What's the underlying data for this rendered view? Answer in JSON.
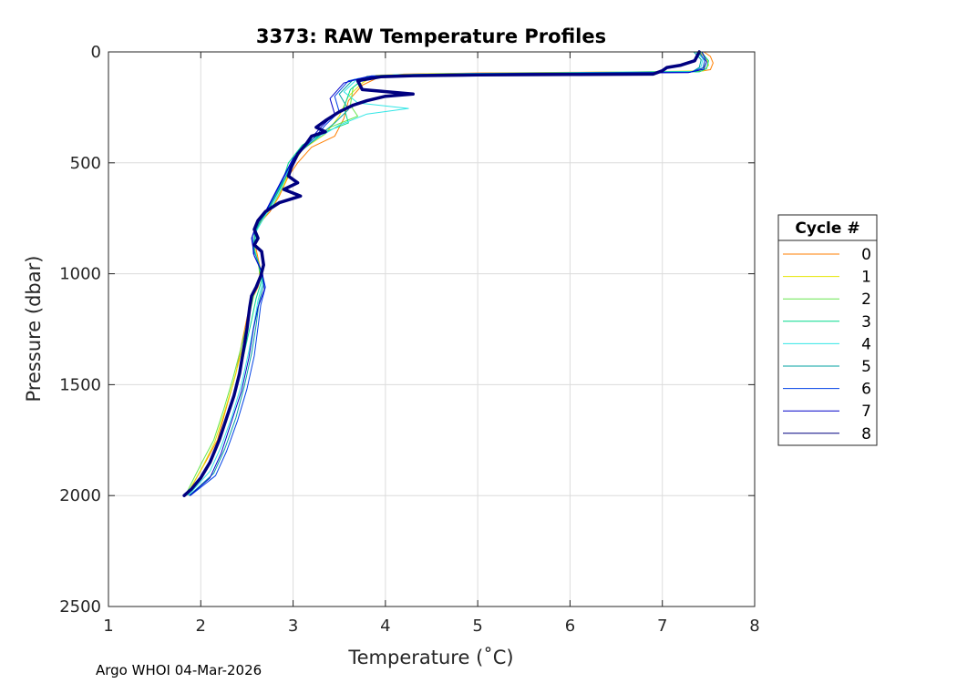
{
  "chart_data": {
    "type": "line",
    "title": "3373: RAW Temperature Profiles",
    "xlabel": "Temperature (˚C)",
    "ylabel": "Pressure (dbar)",
    "xlim": [
      1,
      8
    ],
    "ylim": [
      0,
      2500
    ],
    "y_reversed": true,
    "x_ticks": [
      1,
      2,
      3,
      4,
      5,
      6,
      7,
      8
    ],
    "y_ticks": [
      0,
      500,
      1000,
      1500,
      2000,
      2500
    ],
    "grid": true,
    "legend": {
      "title": "Cycle #",
      "placement": "right"
    },
    "footer": "Argo WHOI 04-Mar-2026",
    "series": [
      {
        "name": "0",
        "color": "#ff7f00",
        "points": [
          [
            7.45,
            0
          ],
          [
            7.52,
            20
          ],
          [
            7.55,
            50
          ],
          [
            7.52,
            80
          ],
          [
            7.4,
            88
          ],
          [
            6.0,
            92
          ],
          [
            5.0,
            95
          ],
          [
            4.2,
            100
          ],
          [
            3.95,
            110
          ],
          [
            3.75,
            150
          ],
          [
            3.6,
            220
          ],
          [
            3.55,
            300
          ],
          [
            3.45,
            380
          ],
          [
            3.2,
            430
          ],
          [
            3.05,
            500
          ],
          [
            2.95,
            560
          ],
          [
            2.85,
            650
          ],
          [
            2.75,
            720
          ],
          [
            2.62,
            780
          ],
          [
            2.58,
            850
          ],
          [
            2.62,
            930
          ],
          [
            2.66,
            1000
          ],
          [
            2.62,
            1060
          ],
          [
            2.55,
            1120
          ],
          [
            2.5,
            1200
          ],
          [
            2.45,
            1300
          ],
          [
            2.38,
            1450
          ],
          [
            2.28,
            1600
          ],
          [
            2.18,
            1750
          ],
          [
            2.05,
            1850
          ],
          [
            1.86,
            1990
          ]
        ]
      },
      {
        "name": "1",
        "color": "#e6e600",
        "points": [
          [
            7.4,
            0
          ],
          [
            7.48,
            30
          ],
          [
            7.5,
            60
          ],
          [
            7.45,
            85
          ],
          [
            6.8,
            90
          ],
          [
            5.5,
            95
          ],
          [
            4.5,
            98
          ],
          [
            3.9,
            105
          ],
          [
            3.75,
            140
          ],
          [
            3.6,
            200
          ],
          [
            3.5,
            290
          ],
          [
            3.35,
            370
          ],
          [
            3.1,
            440
          ],
          [
            2.98,
            520
          ],
          [
            2.9,
            600
          ],
          [
            2.8,
            680
          ],
          [
            2.7,
            740
          ],
          [
            2.6,
            800
          ],
          [
            2.58,
            880
          ],
          [
            2.63,
            960
          ],
          [
            2.64,
            1030
          ],
          [
            2.57,
            1100
          ],
          [
            2.52,
            1200
          ],
          [
            2.46,
            1320
          ],
          [
            2.36,
            1480
          ],
          [
            2.26,
            1620
          ],
          [
            2.15,
            1760
          ],
          [
            2.02,
            1870
          ],
          [
            1.85,
            1995
          ]
        ]
      },
      {
        "name": "2",
        "color": "#66e64d",
        "points": [
          [
            7.38,
            0
          ],
          [
            7.46,
            35
          ],
          [
            7.45,
            70
          ],
          [
            7.38,
            88
          ],
          [
            6.5,
            92
          ],
          [
            5.3,
            97
          ],
          [
            4.3,
            102
          ],
          [
            3.8,
            110
          ],
          [
            3.65,
            160
          ],
          [
            3.62,
            240
          ],
          [
            3.7,
            290
          ],
          [
            3.4,
            340
          ],
          [
            3.15,
            410
          ],
          [
            3.0,
            480
          ],
          [
            2.92,
            570
          ],
          [
            2.8,
            660
          ],
          [
            2.7,
            730
          ],
          [
            2.6,
            790
          ],
          [
            2.57,
            870
          ],
          [
            2.62,
            950
          ],
          [
            2.65,
            1020
          ],
          [
            2.58,
            1090
          ],
          [
            2.52,
            1190
          ],
          [
            2.45,
            1310
          ],
          [
            2.35,
            1470
          ],
          [
            2.25,
            1610
          ],
          [
            2.14,
            1750
          ],
          [
            2.0,
            1860
          ],
          [
            1.84,
            1993
          ]
        ]
      },
      {
        "name": "3",
        "color": "#00d98c",
        "points": [
          [
            7.42,
            0
          ],
          [
            7.5,
            40
          ],
          [
            7.48,
            75
          ],
          [
            7.4,
            90
          ],
          [
            6.2,
            94
          ],
          [
            5.1,
            98
          ],
          [
            4.2,
            104
          ],
          [
            3.78,
            115
          ],
          [
            3.62,
            170
          ],
          [
            3.55,
            250
          ],
          [
            3.6,
            320
          ],
          [
            3.35,
            360
          ],
          [
            3.1,
            420
          ],
          [
            2.95,
            500
          ],
          [
            2.88,
            590
          ],
          [
            2.78,
            670
          ],
          [
            2.68,
            740
          ],
          [
            2.59,
            800
          ],
          [
            2.57,
            880
          ],
          [
            2.63,
            960
          ],
          [
            2.66,
            1030
          ],
          [
            2.6,
            1110
          ],
          [
            2.55,
            1210
          ],
          [
            2.48,
            1340
          ],
          [
            2.4,
            1490
          ],
          [
            2.3,
            1630
          ],
          [
            2.18,
            1770
          ],
          [
            2.06,
            1880
          ],
          [
            1.86,
            1996
          ]
        ]
      },
      {
        "name": "4",
        "color": "#33e6e6",
        "points": [
          [
            7.36,
            0
          ],
          [
            7.44,
            30
          ],
          [
            7.42,
            65
          ],
          [
            7.35,
            88
          ],
          [
            6.0,
            93
          ],
          [
            4.9,
            97
          ],
          [
            4.1,
            103
          ],
          [
            3.7,
            120
          ],
          [
            3.55,
            180
          ],
          [
            3.7,
            230
          ],
          [
            4.25,
            255
          ],
          [
            3.8,
            280
          ],
          [
            3.5,
            330
          ],
          [
            3.3,
            380
          ],
          [
            3.05,
            450
          ],
          [
            2.95,
            530
          ],
          [
            2.88,
            610
          ],
          [
            2.78,
            690
          ],
          [
            2.68,
            750
          ],
          [
            2.6,
            810
          ],
          [
            2.58,
            890
          ],
          [
            2.64,
            970
          ],
          [
            2.67,
            1040
          ],
          [
            2.62,
            1120
          ],
          [
            2.58,
            1220
          ],
          [
            2.52,
            1350
          ],
          [
            2.44,
            1500
          ],
          [
            2.34,
            1640
          ],
          [
            2.22,
            1780
          ],
          [
            2.1,
            1890
          ],
          [
            1.87,
            1997
          ]
        ]
      },
      {
        "name": "5",
        "color": "#00a0a0",
        "points": [
          [
            7.34,
            0
          ],
          [
            7.42,
            35
          ],
          [
            7.4,
            70
          ],
          [
            7.32,
            90
          ],
          [
            5.8,
            95
          ],
          [
            4.7,
            99
          ],
          [
            3.95,
            106
          ],
          [
            3.65,
            125
          ],
          [
            3.5,
            190
          ],
          [
            3.6,
            260
          ],
          [
            3.45,
            320
          ],
          [
            3.25,
            390
          ],
          [
            3.05,
            460
          ],
          [
            2.95,
            540
          ],
          [
            2.85,
            620
          ],
          [
            2.75,
            700
          ],
          [
            2.65,
            760
          ],
          [
            2.58,
            820
          ],
          [
            2.58,
            900
          ],
          [
            2.65,
            980
          ],
          [
            2.68,
            1050
          ],
          [
            2.63,
            1130
          ],
          [
            2.6,
            1230
          ],
          [
            2.55,
            1360
          ],
          [
            2.47,
            1510
          ],
          [
            2.38,
            1650
          ],
          [
            2.26,
            1790
          ],
          [
            2.14,
            1900
          ],
          [
            1.88,
            1998
          ]
        ]
      },
      {
        "name": "6",
        "color": "#0040e6",
        "points": [
          [
            7.4,
            0
          ],
          [
            7.46,
            40
          ],
          [
            7.44,
            72
          ],
          [
            7.3,
            92
          ],
          [
            5.6,
            97
          ],
          [
            4.5,
            101
          ],
          [
            3.85,
            108
          ],
          [
            3.6,
            130
          ],
          [
            3.45,
            200
          ],
          [
            3.5,
            270
          ],
          [
            3.35,
            330
          ],
          [
            3.2,
            400
          ],
          [
            3.02,
            470
          ],
          [
            2.92,
            550
          ],
          [
            2.82,
            630
          ],
          [
            2.72,
            710
          ],
          [
            2.62,
            770
          ],
          [
            2.56,
            830
          ],
          [
            2.57,
            910
          ],
          [
            2.66,
            990
          ],
          [
            2.7,
            1060
          ],
          [
            2.65,
            1140
          ],
          [
            2.62,
            1240
          ],
          [
            2.58,
            1370
          ],
          [
            2.5,
            1520
          ],
          [
            2.4,
            1660
          ],
          [
            2.28,
            1800
          ],
          [
            2.16,
            1910
          ],
          [
            1.89,
            1999
          ]
        ]
      },
      {
        "name": "7",
        "color": "#0000c8",
        "points": [
          [
            7.43,
            0
          ],
          [
            7.48,
            45
          ],
          [
            7.45,
            78
          ],
          [
            7.28,
            93
          ],
          [
            5.4,
            98
          ],
          [
            4.4,
            103
          ],
          [
            3.8,
            112
          ],
          [
            3.55,
            140
          ],
          [
            3.4,
            210
          ],
          [
            3.45,
            280
          ],
          [
            3.3,
            340
          ],
          [
            3.15,
            410
          ],
          [
            3.0,
            480
          ],
          [
            2.9,
            560
          ],
          [
            2.8,
            640
          ],
          [
            2.7,
            720
          ],
          [
            2.6,
            780
          ],
          [
            2.55,
            840
          ],
          [
            2.58,
            920
          ],
          [
            2.67,
            1000
          ],
          [
            2.69,
            1070
          ],
          [
            2.62,
            1150
          ],
          [
            2.57,
            1250
          ],
          [
            2.52,
            1380
          ],
          [
            2.44,
            1530
          ],
          [
            2.33,
            1670
          ],
          [
            2.22,
            1810
          ],
          [
            2.1,
            1920
          ],
          [
            1.88,
            2000
          ]
        ]
      },
      {
        "name": "8",
        "color": "#000080",
        "width": 3.5,
        "points": [
          [
            7.4,
            0
          ],
          [
            7.35,
            40
          ],
          [
            7.2,
            60
          ],
          [
            7.05,
            70
          ],
          [
            7.0,
            85
          ],
          [
            6.9,
            100
          ],
          [
            6.0,
            102
          ],
          [
            5.0,
            104
          ],
          [
            4.3,
            107
          ],
          [
            3.95,
            112
          ],
          [
            3.7,
            130
          ],
          [
            3.75,
            170
          ],
          [
            4.3,
            190
          ],
          [
            4.0,
            200
          ],
          [
            3.8,
            220
          ],
          [
            3.65,
            240
          ],
          [
            3.5,
            270
          ],
          [
            3.35,
            310
          ],
          [
            3.25,
            340
          ],
          [
            3.35,
            360
          ],
          [
            3.2,
            380
          ],
          [
            3.15,
            410
          ],
          [
            3.05,
            460
          ],
          [
            2.98,
            520
          ],
          [
            2.95,
            560
          ],
          [
            3.05,
            590
          ],
          [
            2.9,
            620
          ],
          [
            3.08,
            650
          ],
          [
            2.85,
            680
          ],
          [
            2.7,
            720
          ],
          [
            2.62,
            760
          ],
          [
            2.58,
            800
          ],
          [
            2.62,
            840
          ],
          [
            2.58,
            870
          ],
          [
            2.66,
            900
          ],
          [
            2.68,
            960
          ],
          [
            2.65,
            1010
          ],
          [
            2.6,
            1060
          ],
          [
            2.55,
            1100
          ],
          [
            2.53,
            1150
          ],
          [
            2.5,
            1250
          ],
          [
            2.46,
            1350
          ],
          [
            2.42,
            1450
          ],
          [
            2.36,
            1550
          ],
          [
            2.28,
            1650
          ],
          [
            2.2,
            1750
          ],
          [
            2.1,
            1850
          ],
          [
            2.0,
            1920
          ],
          [
            1.9,
            1970
          ],
          [
            1.82,
            2000
          ]
        ]
      }
    ]
  }
}
